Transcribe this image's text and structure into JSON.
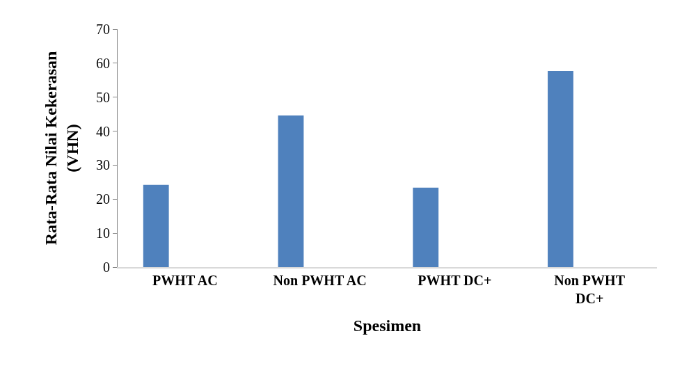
{
  "chart_data": {
    "type": "bar",
    "xlabel": "Spesimen",
    "ylabel": "Rata-Rata Nilai Kekerasan (VHN)",
    "categories": [
      "PWHT AC",
      "Non PWHT AC",
      "PWHT DC+",
      "Non PWHT DC+"
    ],
    "values": [
      24.2,
      44.6,
      23.4,
      57.7
    ],
    "color": "#4f81bd",
    "ylim": [
      0,
      70
    ],
    "yticks": [
      0,
      10,
      20,
      30,
      40,
      50,
      60,
      70
    ]
  }
}
